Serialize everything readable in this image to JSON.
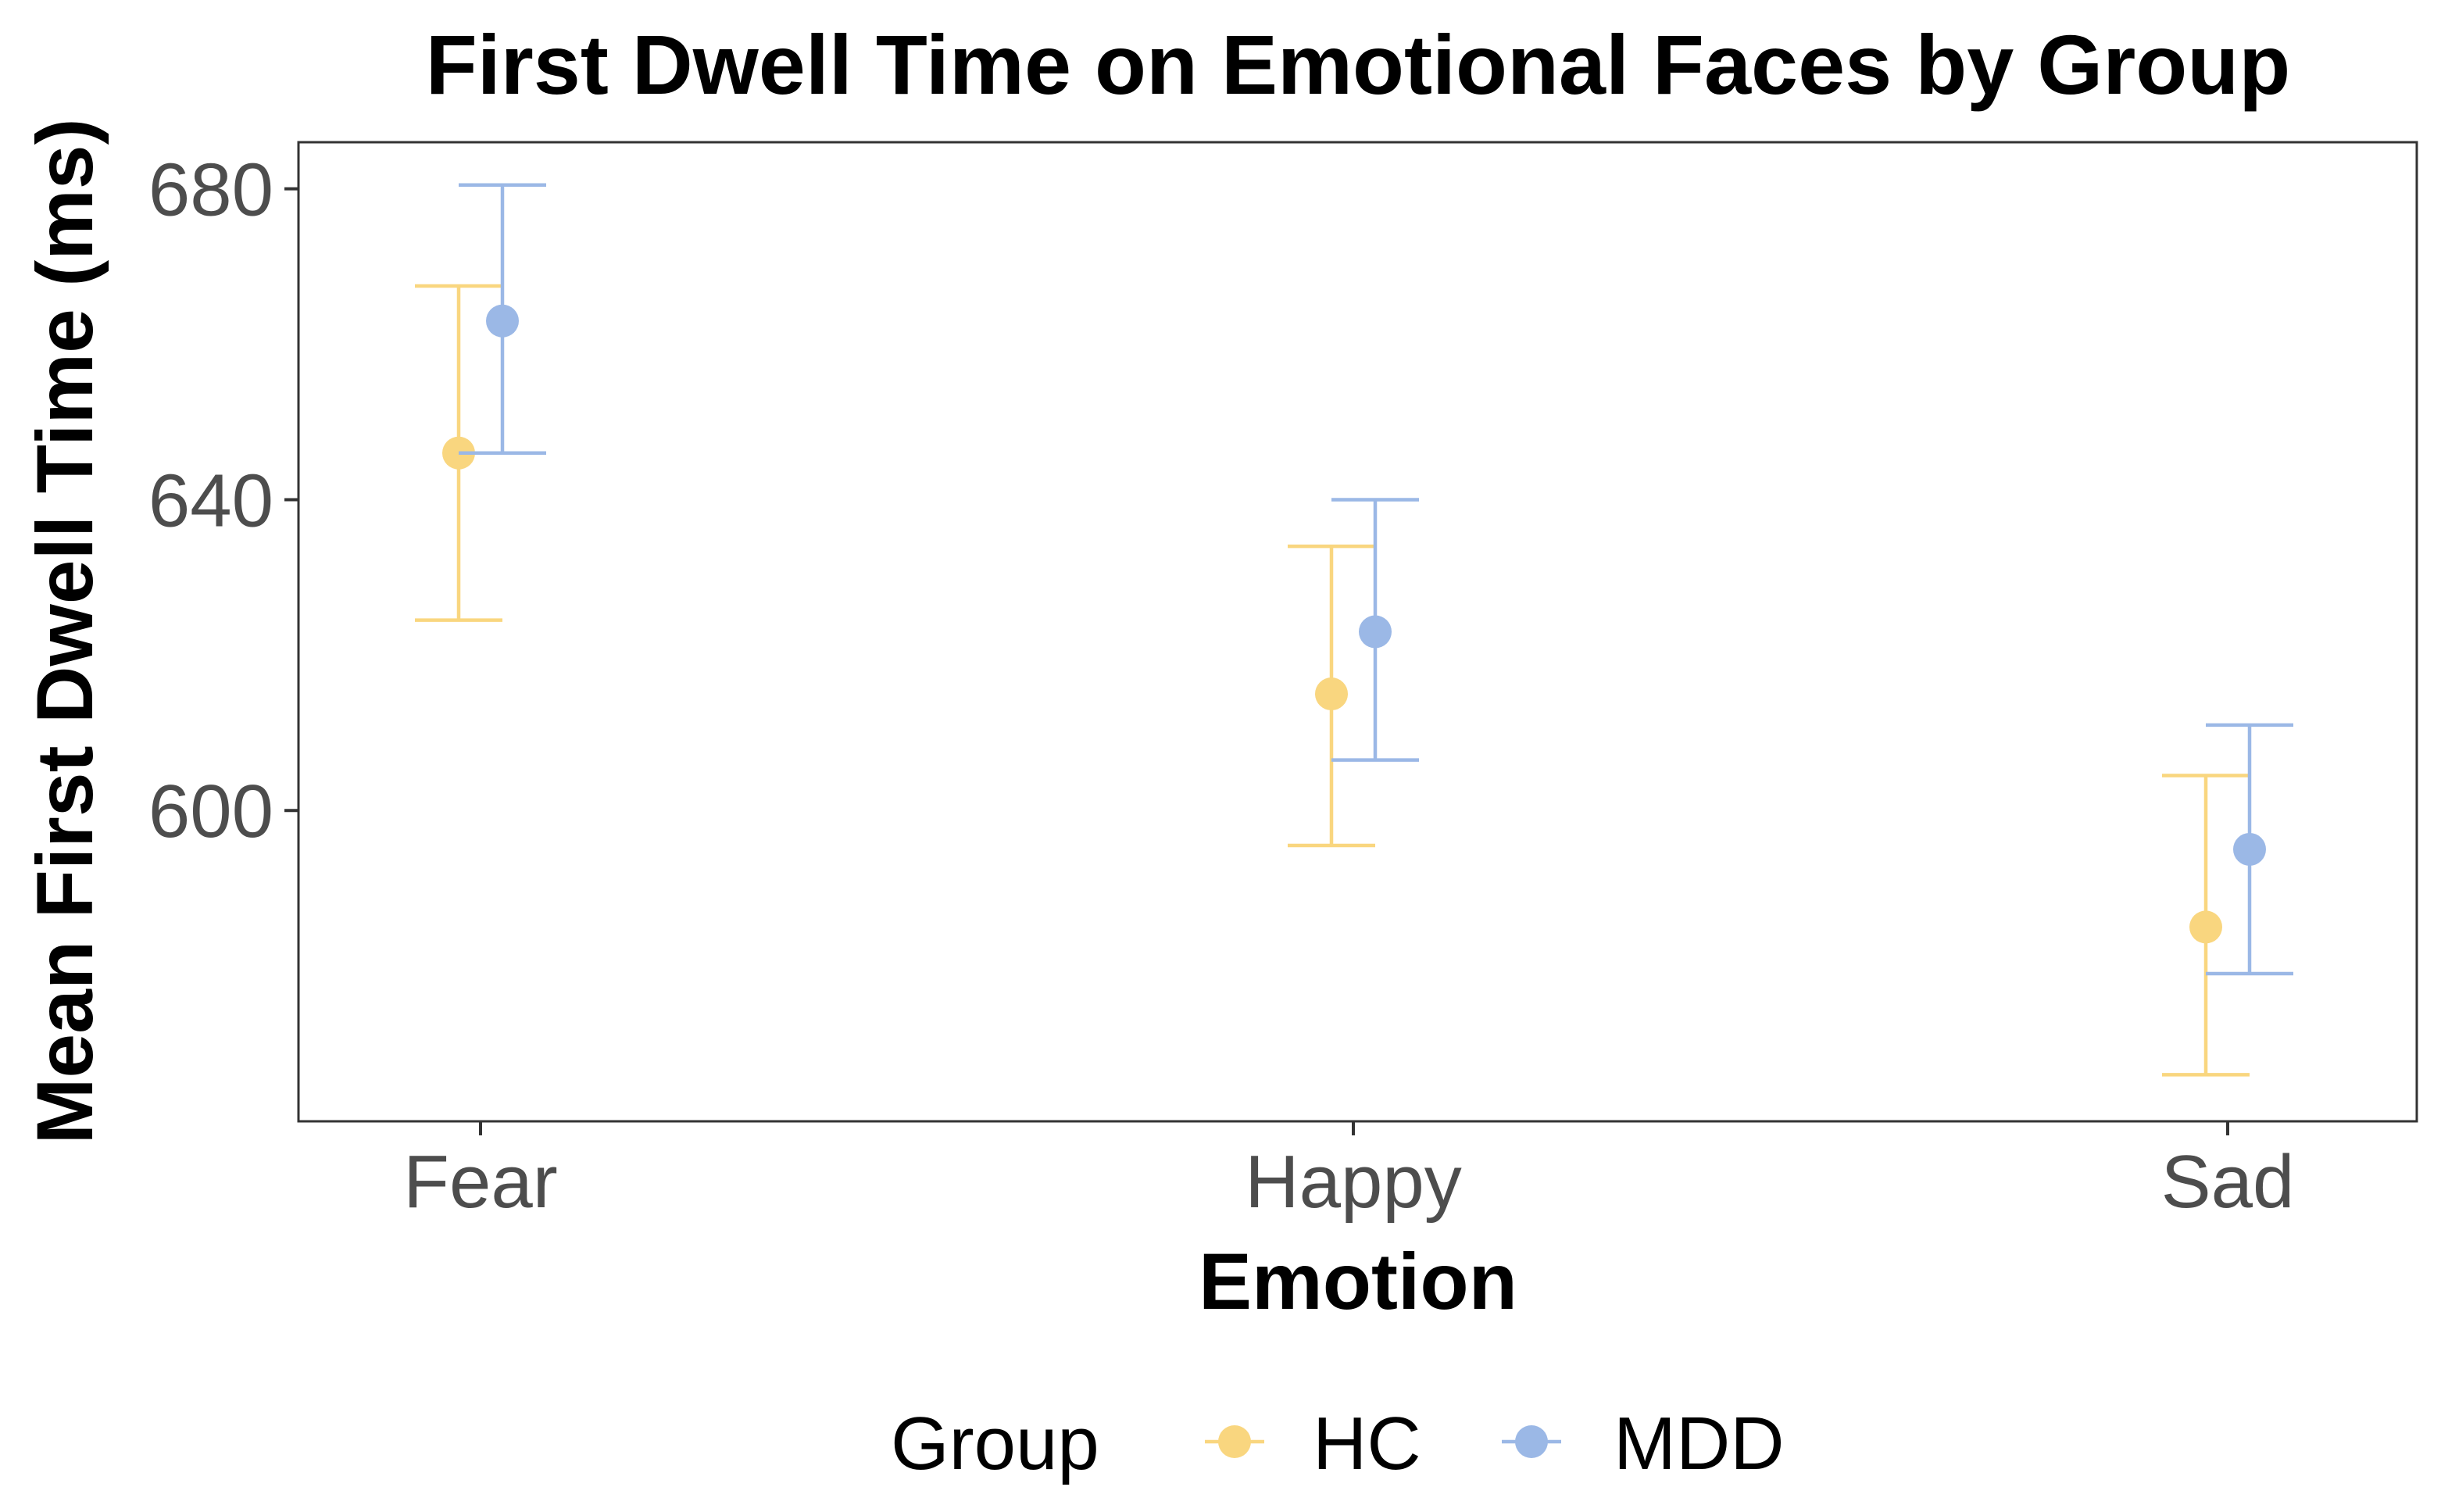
{
  "chart_data": {
    "type": "scatter",
    "title": "First Dwell Time on Emotional Faces by Group",
    "xlabel": "Emotion",
    "ylabel": "Mean First Dwell Time (ms)",
    "categories": [
      "Fear",
      "Happy",
      "Sad"
    ],
    "ylim": [
      560,
      686
    ],
    "yticks": [
      600,
      640,
      680
    ],
    "grid": false,
    "legend": {
      "title": "Group",
      "position": "bottom"
    },
    "series": [
      {
        "name": "HC",
        "color": "#f9d67f",
        "points": [
          {
            "category": "Fear",
            "mean": 646,
            "lower": 624.5,
            "upper": 667.5
          },
          {
            "category": "Happy",
            "mean": 615,
            "lower": 595.5,
            "upper": 634
          },
          {
            "category": "Sad",
            "mean": 585,
            "lower": 566,
            "upper": 604.5
          }
        ]
      },
      {
        "name": "MDD",
        "color": "#9bb8e6",
        "points": [
          {
            "category": "Fear",
            "mean": 663,
            "lower": 646,
            "upper": 680.5
          },
          {
            "category": "Happy",
            "mean": 623,
            "lower": 606.5,
            "upper": 640
          },
          {
            "category": "Sad",
            "mean": 595,
            "lower": 579,
            "upper": 611
          }
        ]
      }
    ]
  }
}
